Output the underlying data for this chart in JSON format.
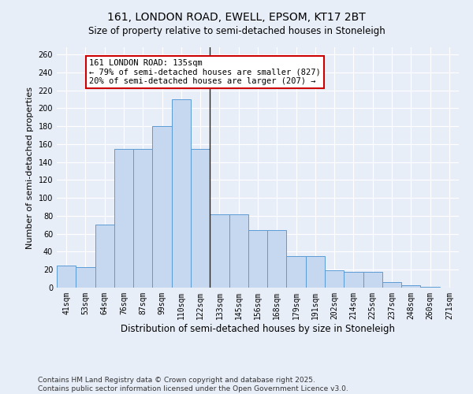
{
  "title": "161, LONDON ROAD, EWELL, EPSOM, KT17 2BT",
  "subtitle": "Size of property relative to semi-detached houses in Stoneleigh",
  "xlabel": "Distribution of semi-detached houses by size in Stoneleigh",
  "ylabel": "Number of semi-detached properties",
  "bar_labels": [
    "41sqm",
    "53sqm",
    "64sqm",
    "76sqm",
    "87sqm",
    "99sqm",
    "110sqm",
    "122sqm",
    "133sqm",
    "145sqm",
    "156sqm",
    "168sqm",
    "179sqm",
    "191sqm",
    "202sqm",
    "214sqm",
    "225sqm",
    "237sqm",
    "248sqm",
    "260sqm",
    "271sqm"
  ],
  "bar_values": [
    25,
    23,
    70,
    155,
    155,
    180,
    210,
    155,
    82,
    82,
    64,
    64,
    35,
    35,
    19,
    18,
    18,
    6,
    3,
    1,
    0
  ],
  "bar_color": "#c5d8f0",
  "bar_edge_color": "#5b9bd5",
  "vline_x_index": 7,
  "vline_color": "#222222",
  "annotation_text": "161 LONDON ROAD: 135sqm\n← 79% of semi-detached houses are smaller (827)\n20% of semi-detached houses are larger (207) →",
  "annotation_box_facecolor": "#ffffff",
  "annotation_box_edgecolor": "#cc0000",
  "ylim": [
    0,
    268
  ],
  "yticks": [
    0,
    20,
    40,
    60,
    80,
    100,
    120,
    140,
    160,
    180,
    200,
    220,
    240,
    260
  ],
  "footer_text": "Contains HM Land Registry data © Crown copyright and database right 2025.\nContains public sector information licensed under the Open Government Licence v3.0.",
  "bg_color": "#e8eef8",
  "plot_bg_color": "#e8eef8",
  "grid_color": "#ffffff",
  "title_fontsize": 10,
  "xlabel_fontsize": 8.5,
  "ylabel_fontsize": 8,
  "tick_fontsize": 7,
  "footer_fontsize": 6.5,
  "annot_fontsize": 7.5
}
